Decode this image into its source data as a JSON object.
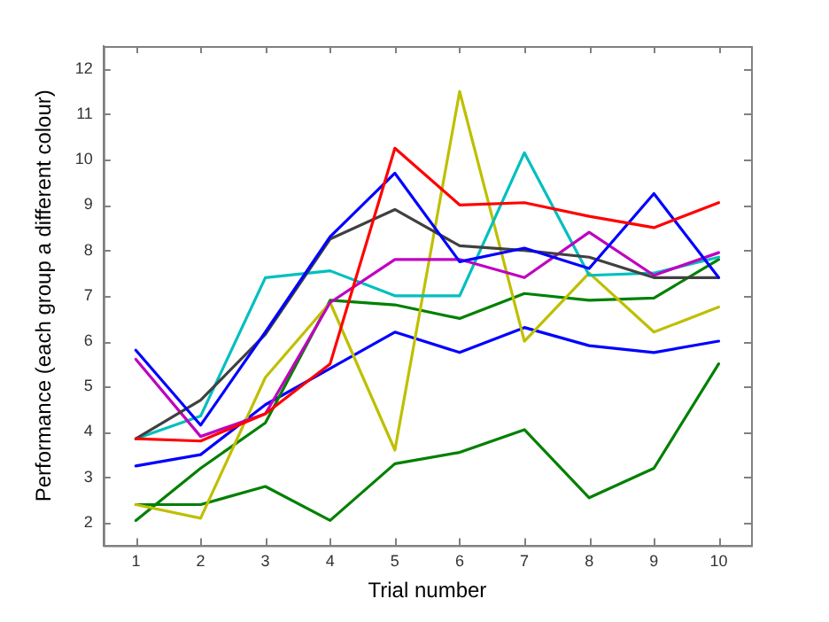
{
  "chart_data": {
    "type": "line",
    "xlabel": "Trial number",
    "ylabel": "Performance (each group a different colour)",
    "x": [
      1,
      2,
      3,
      4,
      5,
      6,
      7,
      8,
      9,
      10
    ],
    "xlim": [
      0.5,
      10.5
    ],
    "xticks": [
      1,
      2,
      3,
      4,
      5,
      6,
      7,
      8,
      9,
      10
    ],
    "ylim": [
      1.5,
      12.5
    ],
    "yticks": [
      2,
      3,
      4,
      5,
      6,
      7,
      8,
      9,
      10,
      11,
      12
    ],
    "marker": "none",
    "line_style": "solid",
    "legend": false,
    "series": [
      {
        "color": "#ff0000",
        "values": [
          3.85,
          3.8,
          4.4,
          5.5,
          10.25,
          9.0,
          9.05,
          8.75,
          8.5,
          9.05
        ]
      },
      {
        "color": "#0000ff",
        "values": [
          5.8,
          4.15,
          6.2,
          8.3,
          9.7,
          7.75,
          8.05,
          7.6,
          9.25,
          7.4
        ]
      },
      {
        "color": "#404040",
        "values": [
          3.85,
          4.7,
          6.15,
          8.25,
          8.9,
          8.1,
          8.0,
          7.85,
          7.4,
          7.4
        ]
      },
      {
        "color": "#bf00bf",
        "values": [
          5.6,
          3.9,
          4.4,
          6.85,
          7.8,
          7.8,
          7.4,
          8.4,
          7.45,
          7.95
        ]
      },
      {
        "color": "#00bfbf",
        "values": [
          3.85,
          4.35,
          7.4,
          7.55,
          7.0,
          7.0,
          10.15,
          7.45,
          7.5,
          7.85
        ]
      },
      {
        "color": "#bfbf00",
        "values": [
          2.4,
          2.1,
          5.2,
          6.85,
          3.6,
          11.5,
          6.0,
          7.5,
          6.2,
          6.75
        ]
      },
      {
        "color": "#008000",
        "values": [
          2.05,
          3.2,
          4.2,
          6.9,
          6.8,
          6.5,
          7.05,
          6.9,
          6.95,
          7.8
        ]
      },
      {
        "color": "#0000ff",
        "values": [
          3.25,
          3.5,
          4.6,
          5.4,
          6.2,
          5.75,
          6.3,
          5.9,
          5.75,
          6.0
        ]
      },
      {
        "color": "#008000",
        "values": [
          2.4,
          2.4,
          2.8,
          2.05,
          3.3,
          3.55,
          4.05,
          2.55,
          3.2,
          5.5
        ]
      }
    ]
  }
}
